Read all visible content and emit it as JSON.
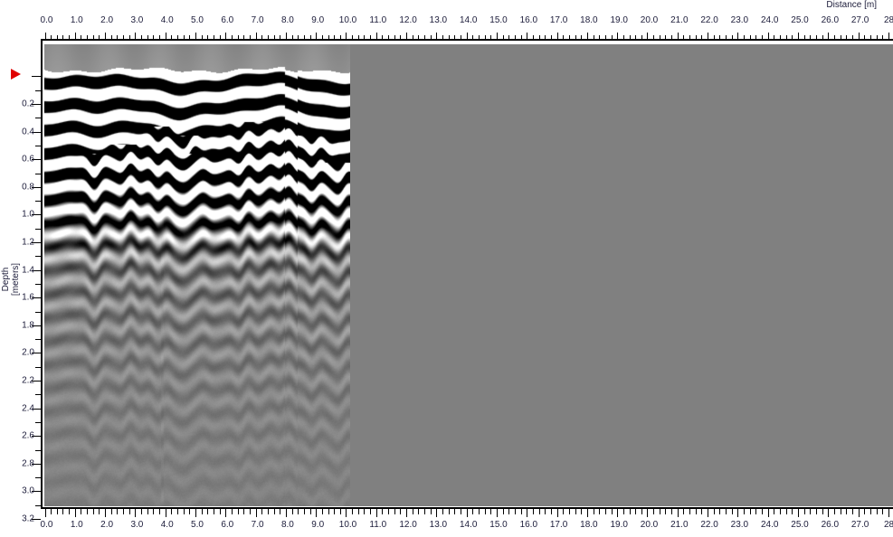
{
  "x_axis": {
    "title": "Distance [m]",
    "ticks": [
      "0.0",
      "1.0",
      "2.0",
      "3.0",
      "4.0",
      "5.0",
      "6.0",
      "7.0",
      "8.0",
      "9.0",
      "10.0",
      "11.0",
      "12.0",
      "13.0",
      "14.0",
      "15.0",
      "16.0",
      "17.0",
      "18.0",
      "19.0",
      "20.0",
      "21.0",
      "22.0",
      "23.0",
      "24.0",
      "25.0",
      "26.0",
      "27.0",
      "28."
    ]
  },
  "y_axis": {
    "title": "Depth [meters]",
    "ticks": [
      "0.2",
      "0.4",
      "0.6",
      "0.8",
      "1.0",
      "1.2",
      "1.4",
      "1.6",
      "1.8",
      "2.0",
      "2.2",
      "2.4",
      "2.6",
      "2.8",
      "3.0",
      "3.2"
    ]
  },
  "radargram": {
    "data_extent_m": 10.1,
    "background_color": "#808080",
    "marker_color": "#e00000",
    "marker_icon": "red-triangle-marker"
  }
}
